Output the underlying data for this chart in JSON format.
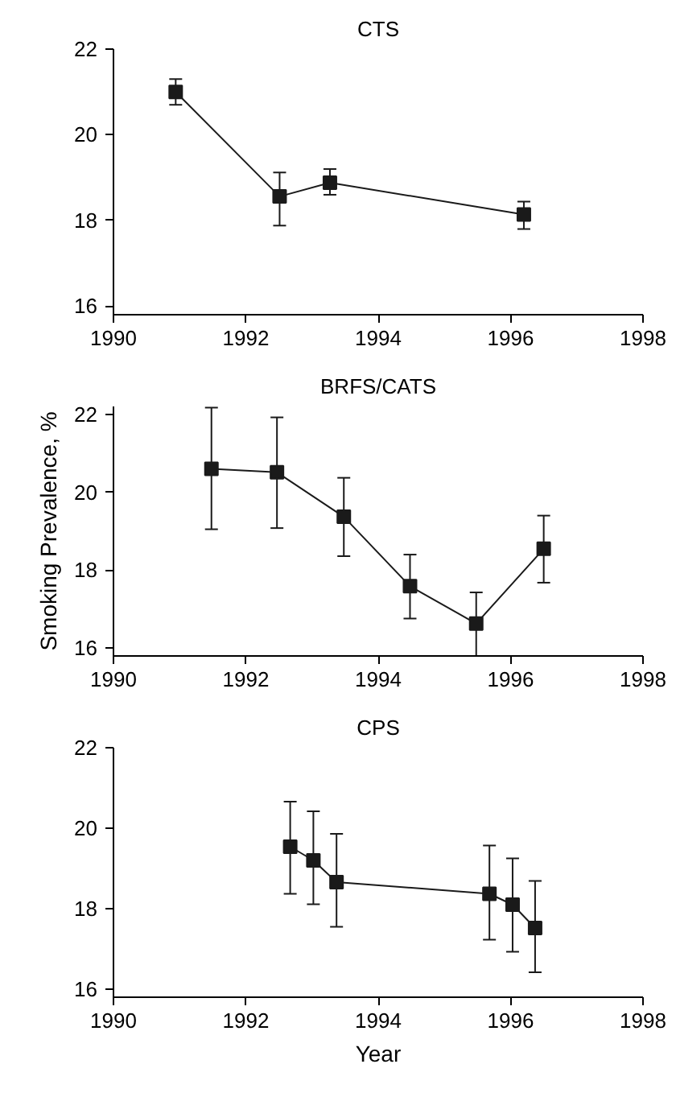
{
  "chart_data": [
    {
      "type": "line",
      "title": "CTS",
      "xlim": [
        1990,
        1998
      ],
      "ylim": [
        15.8,
        22
      ],
      "xticks": [
        1990,
        1992,
        1994,
        1996,
        1998
      ],
      "yticks": [
        16,
        18,
        20,
        22
      ],
      "marker": "square",
      "series": [
        {
          "color": "#1a1a1a",
          "x": [
            1990.94,
            1992.51,
            1993.27,
            1996.2
          ],
          "values": [
            21.0,
            18.56,
            18.88,
            18.14
          ],
          "errors": [
            [
              20.7,
              21.3
            ],
            [
              17.88,
              19.12
            ],
            [
              18.6,
              19.2
            ],
            [
              17.8,
              18.44
            ]
          ]
        }
      ]
    },
    {
      "type": "line",
      "title": "BRFS/CATS",
      "ylabel": "Smoking Prevalence, %",
      "xlim": [
        1990,
        1998
      ],
      "ylim": [
        15.8,
        22.2
      ],
      "xticks": [
        1990,
        1992,
        1994,
        1996,
        1998
      ],
      "yticks": [
        16,
        18,
        20,
        22
      ],
      "marker": "square",
      "series": [
        {
          "color": "#1a1a1a",
          "x": [
            1991.48,
            1992.47,
            1993.48,
            1994.48,
            1995.48,
            1996.5
          ],
          "values": [
            20.6,
            20.51,
            19.37,
            17.59,
            16.63,
            18.55
          ],
          "errors": [
            [
              19.05,
              22.17
            ],
            [
              19.08,
              21.92
            ],
            [
              18.36,
              20.37
            ],
            [
              16.76,
              18.4
            ],
            [
              15.8,
              17.43
            ],
            [
              17.68,
              19.4
            ]
          ]
        }
      ]
    },
    {
      "type": "line",
      "title": "CPS",
      "xlabel": "Year",
      "xlim": [
        1990,
        1998
      ],
      "ylim": [
        15.8,
        22
      ],
      "xticks": [
        1990,
        1992,
        1994,
        1996,
        1998
      ],
      "yticks": [
        16,
        18,
        20,
        22
      ],
      "marker": "square",
      "series": [
        {
          "color": "#1a1a1a",
          "x": [
            1992.67,
            1993.02,
            1993.37,
            1995.68,
            1996.03,
            1996.37
          ],
          "values": [
            19.54,
            19.2,
            18.66,
            18.37,
            18.1,
            17.52
          ],
          "errors": [
            [
              18.37,
              20.66
            ],
            [
              18.11,
              20.42
            ],
            [
              17.55,
              19.86
            ],
            [
              17.23,
              19.57
            ],
            [
              16.93,
              19.25
            ],
            [
              16.42,
              18.69
            ]
          ]
        }
      ]
    }
  ]
}
